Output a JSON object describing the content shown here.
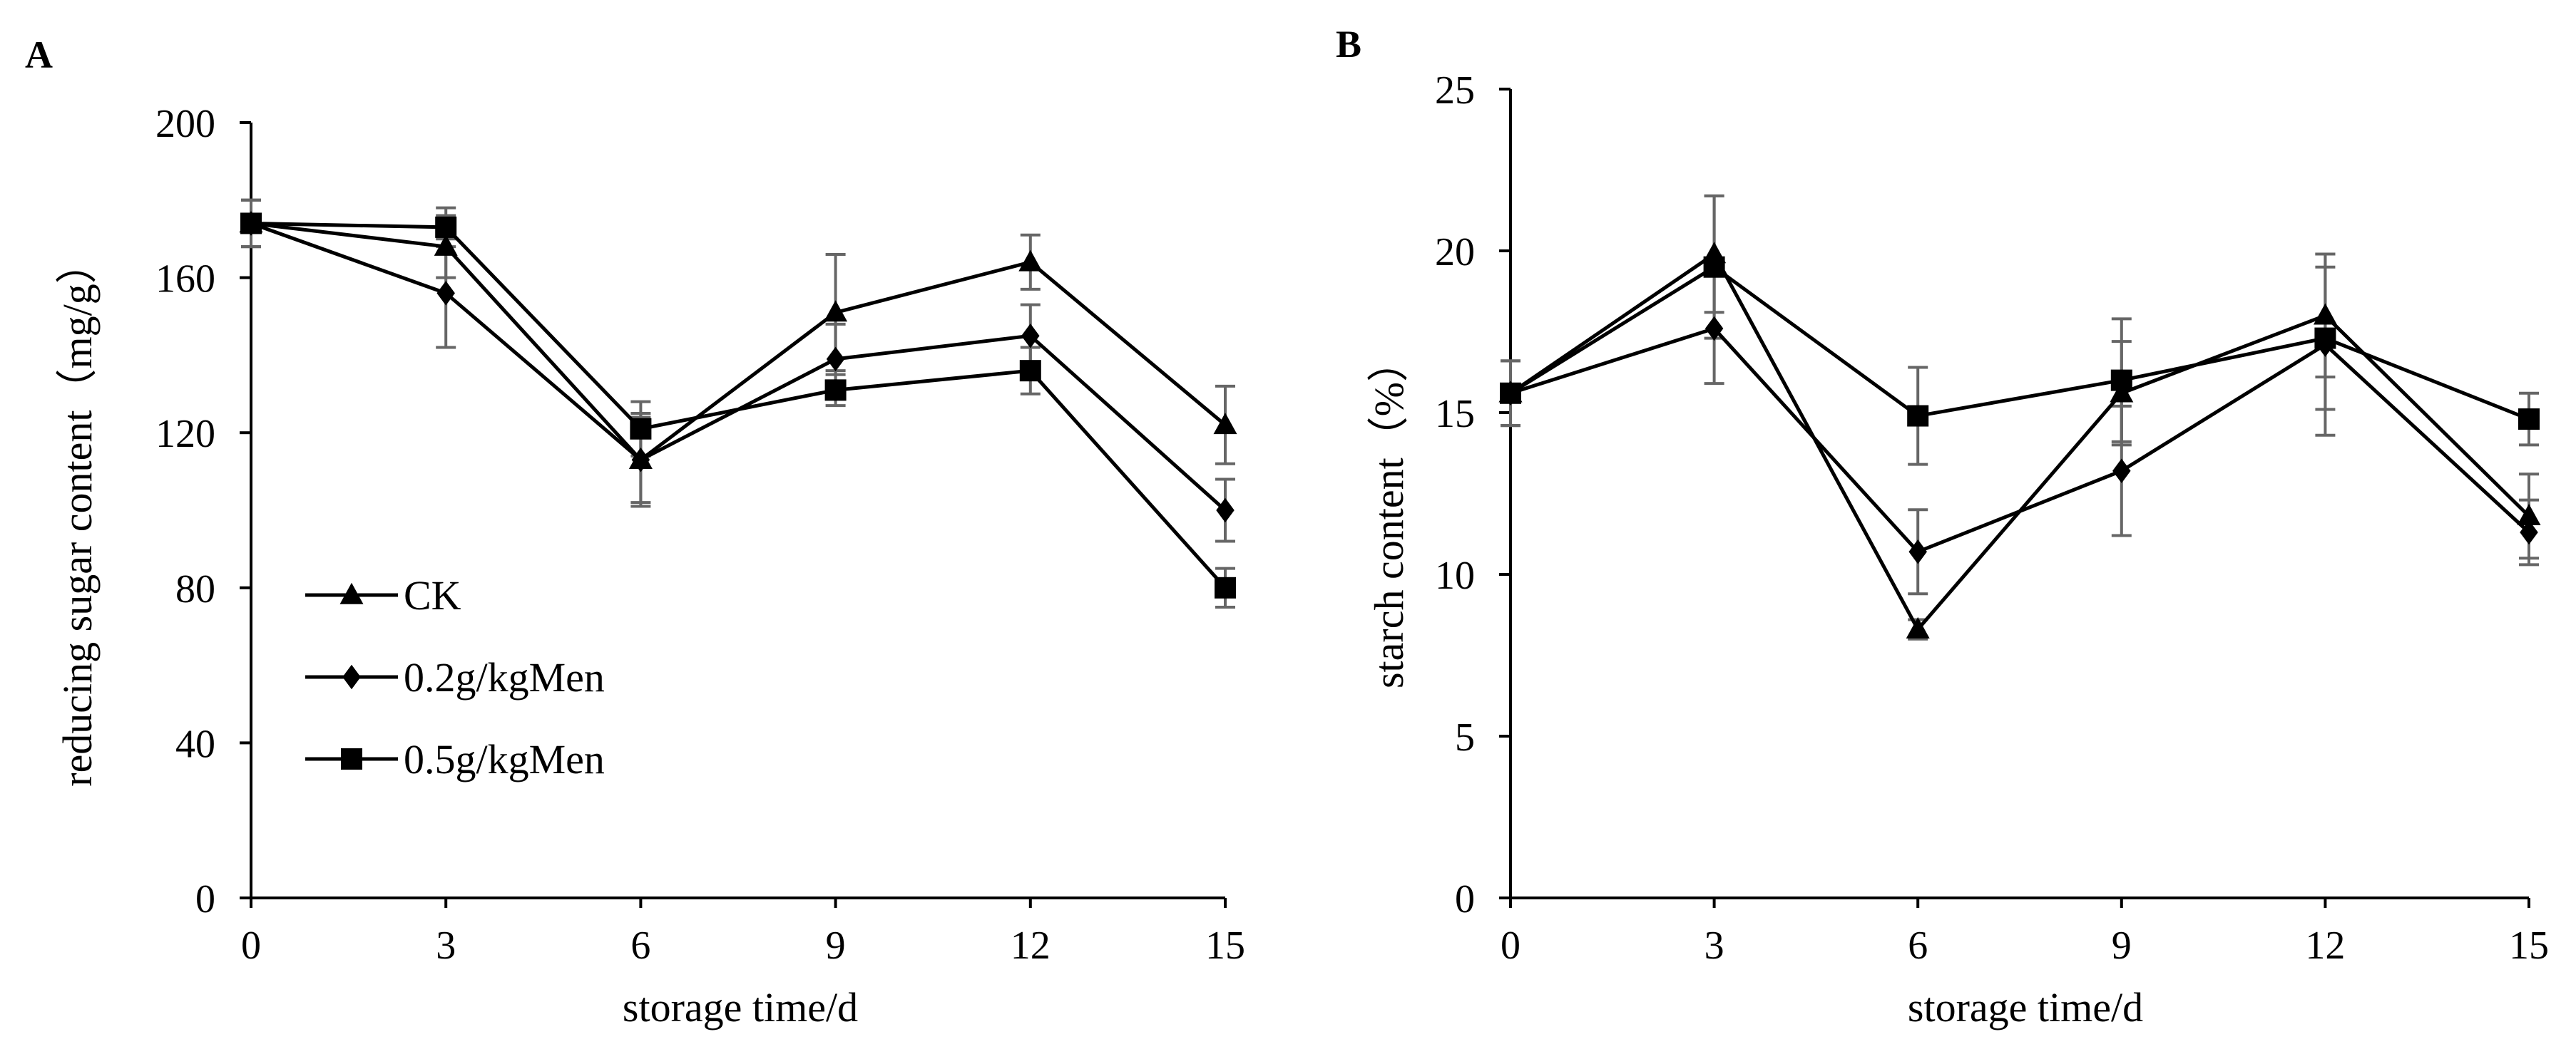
{
  "chart_data": [
    {
      "panel": "A",
      "type": "line",
      "xlabel": "storage time/d",
      "ylabel": "reducing sugar content（mg/g）",
      "xlim": [
        0,
        15
      ],
      "ylim": [
        0,
        200
      ],
      "xticks": [
        "0",
        "3",
        "6",
        "9",
        "12",
        "15"
      ],
      "yticks": [
        "0",
        "40",
        "80",
        "120",
        "160",
        "200"
      ],
      "legend_position": "bottom-left inside",
      "x": [
        0,
        3,
        6,
        9,
        12,
        15
      ],
      "series": [
        {
          "name": "CK",
          "marker": "triangle",
          "values": [
            174,
            168,
            113,
            151,
            164,
            122
          ],
          "errors": [
            6,
            8,
            12,
            15,
            7,
            10
          ]
        },
        {
          "name": "0.2g/kgMen",
          "marker": "diamond",
          "values": [
            174,
            156,
            113,
            139,
            145,
            100
          ],
          "errors": [
            6,
            14,
            11,
            9,
            8,
            8
          ]
        },
        {
          "name": "0.5g/kgMen",
          "marker": "square",
          "values": [
            174,
            173,
            121,
            131,
            136,
            80
          ],
          "errors": [
            6,
            5,
            7,
            4,
            6,
            5
          ]
        }
      ]
    },
    {
      "panel": "B",
      "type": "line",
      "xlabel": "storage time/d",
      "ylabel": "starch content（%）",
      "xlim": [
        0,
        15
      ],
      "ylim": [
        0,
        25
      ],
      "xticks": [
        "0",
        "3",
        "6",
        "9",
        "12",
        "15"
      ],
      "yticks": [
        "0",
        "5",
        "10",
        "15",
        "20",
        "25"
      ],
      "legend_position": "none",
      "x": [
        0,
        3,
        6,
        9,
        12,
        15
      ],
      "series": [
        {
          "name": "CK",
          "marker": "triangle",
          "values": [
            15.6,
            19.9,
            8.3,
            15.6,
            18.0,
            11.8
          ],
          "errors": [
            1.0,
            1.8,
            0.3,
            1.6,
            1.9,
            1.3
          ]
        },
        {
          "name": "0.2g/kgMen",
          "marker": "diamond",
          "values": [
            15.6,
            17.6,
            10.7,
            13.2,
            17.1,
            11.3
          ],
          "errors": [
            1.0,
            1.7,
            1.3,
            2.0,
            2.8,
            1.0
          ]
        },
        {
          "name": "0.5g/kgMen",
          "marker": "square",
          "values": [
            15.6,
            19.5,
            14.9,
            16.0,
            17.3,
            14.8
          ],
          "errors": [
            1.0,
            2.2,
            1.5,
            1.9,
            2.2,
            0.8
          ]
        }
      ]
    }
  ]
}
